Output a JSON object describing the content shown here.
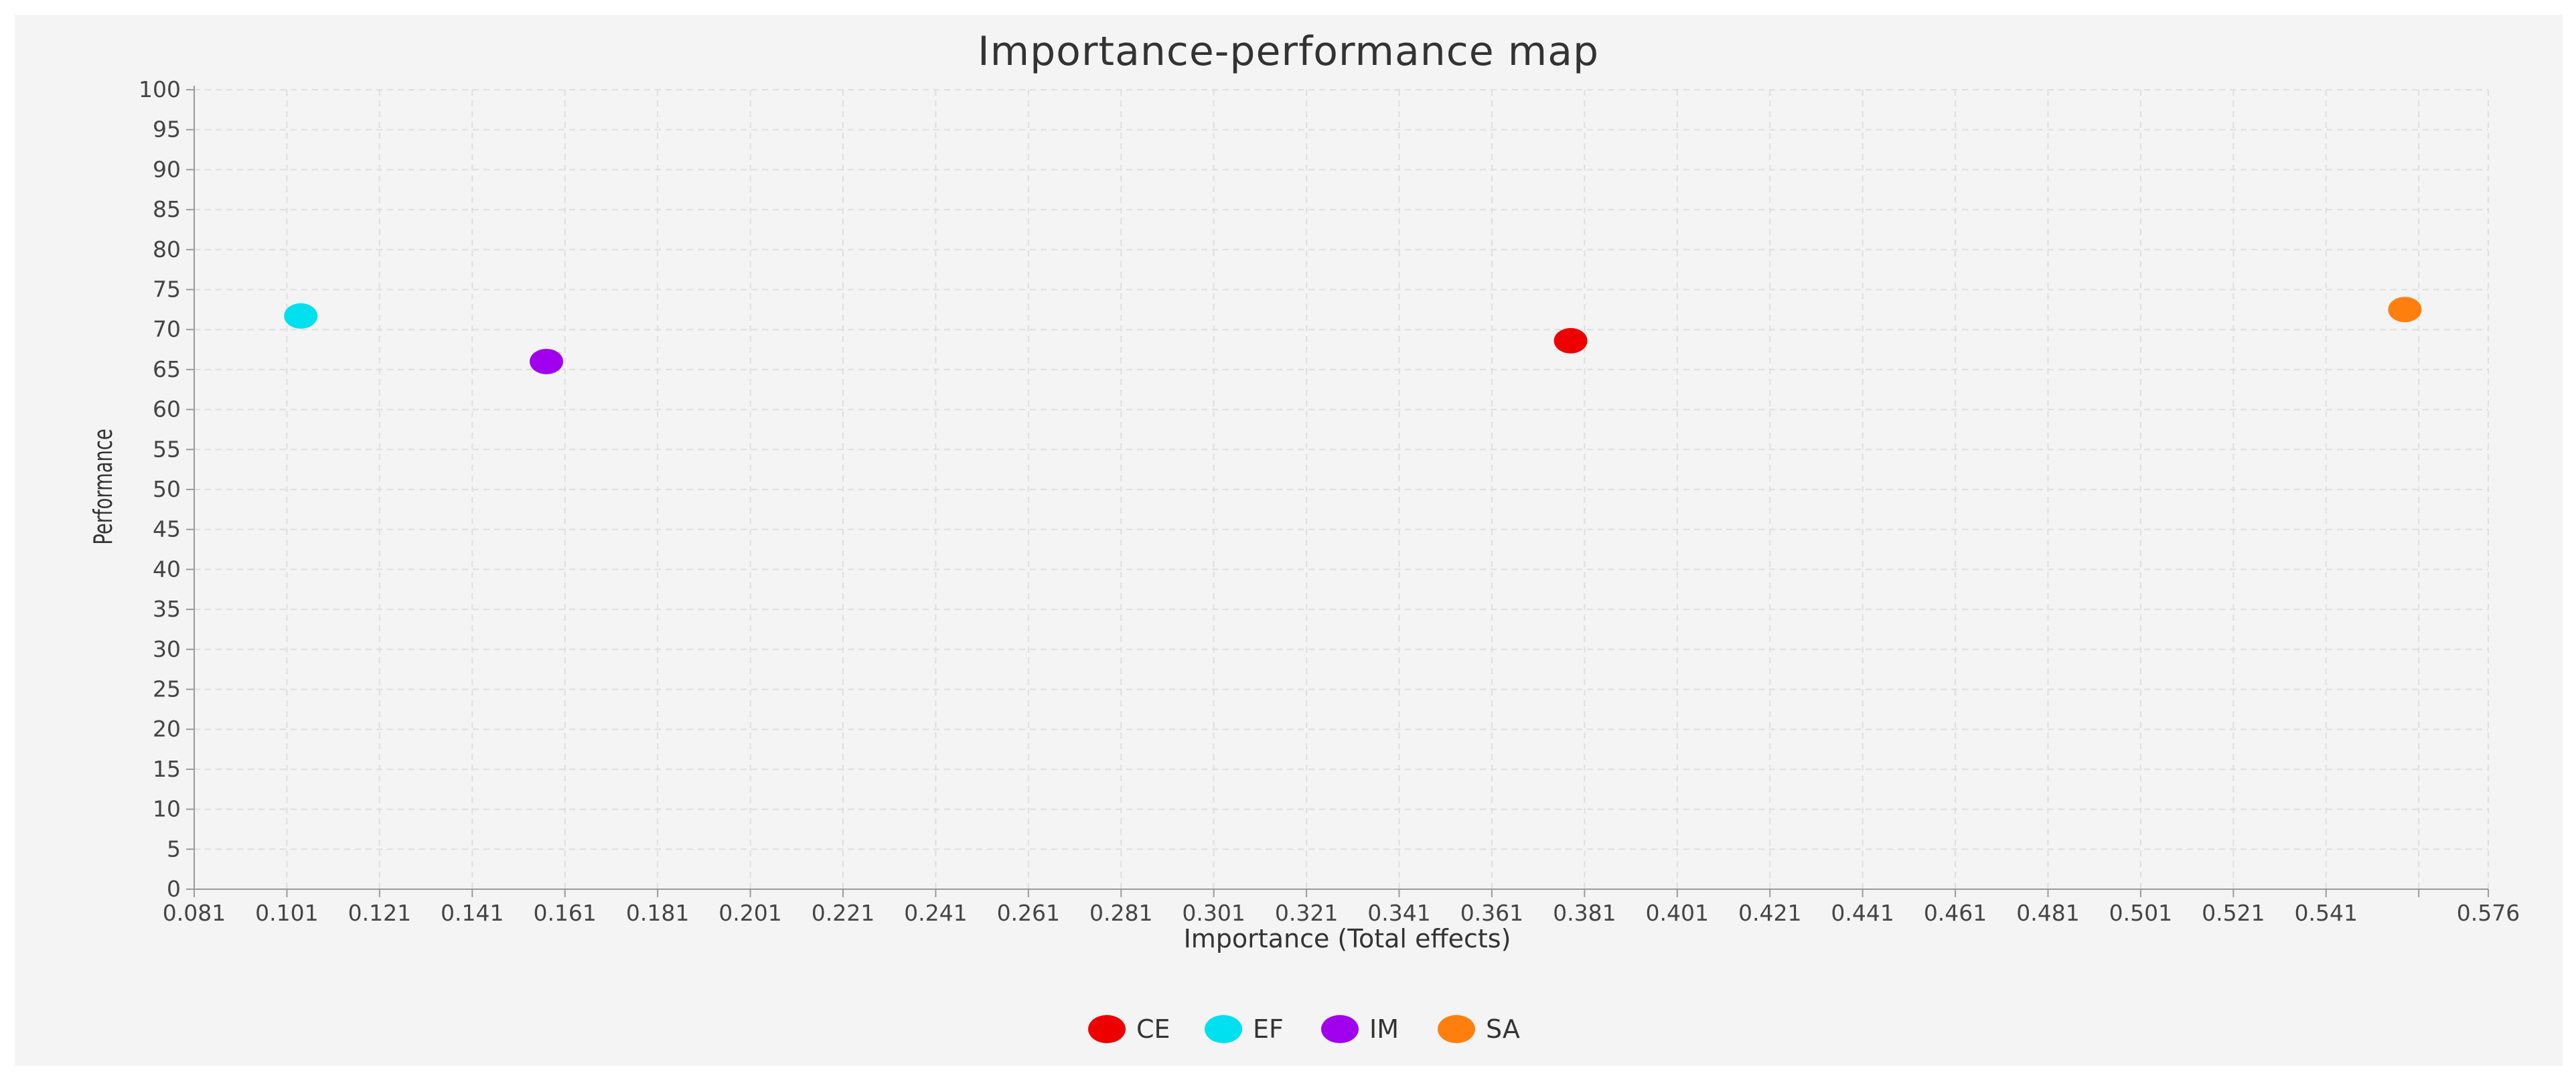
{
  "chart_data": {
    "type": "scatter",
    "title": "Importance-performance map",
    "xlabel": "Importance (Total effects)",
    "ylabel": "Performance",
    "xlim": [
      0.081,
      0.576
    ],
    "ylim": [
      0,
      100
    ],
    "x_ticks": [
      "0.081",
      "0.101",
      "0.121",
      "0.141",
      "0.161",
      "0.181",
      "0.201",
      "0.221",
      "0.241",
      "0.261",
      "0.281",
      "0.301",
      "0.321",
      "0.341",
      "0.361",
      "0.381",
      "0.401",
      "0.421",
      "0.441",
      "0.461",
      "0.481",
      "0.501",
      "0.521",
      "0.541",
      "0.576"
    ],
    "y_ticks": [
      "0",
      "5",
      "10",
      "15",
      "20",
      "25",
      "30",
      "35",
      "40",
      "45",
      "50",
      "55",
      "60",
      "65",
      "70",
      "75",
      "80",
      "85",
      "90",
      "95",
      "100"
    ],
    "grid": true,
    "legend_position": "bottom",
    "series": [
      {
        "name": "CE",
        "color": "#ee0000",
        "x": 0.378,
        "y": 68.6
      },
      {
        "name": "EF",
        "color": "#00e0ee",
        "x": 0.104,
        "y": 71.7
      },
      {
        "name": "IM",
        "color": "#a000ee",
        "x": 0.157,
        "y": 66.0
      },
      {
        "name": "SA",
        "color": "#ff7f0e",
        "x": 0.558,
        "y": 72.5
      }
    ]
  }
}
